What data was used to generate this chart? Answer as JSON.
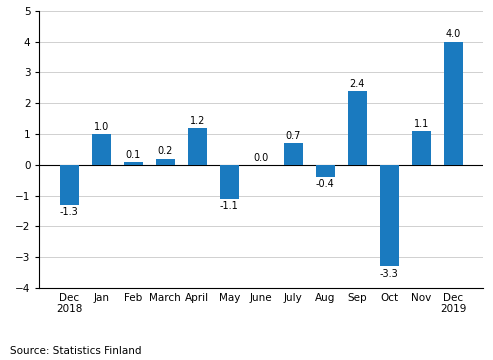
{
  "categories": [
    "Dec\n2018",
    "Jan",
    "Feb",
    "March",
    "April",
    "May",
    "June",
    "July",
    "Aug",
    "Sep",
    "Oct",
    "Nov",
    "Dec\n2019"
  ],
  "values": [
    -1.3,
    1.0,
    0.1,
    0.2,
    1.2,
    -1.1,
    0.0,
    0.7,
    -0.4,
    2.4,
    -3.3,
    1.1,
    4.0
  ],
  "bar_color": "#1a7abf",
  "ylim": [
    -4,
    5
  ],
  "yticks": [
    -4,
    -3,
    -2,
    -1,
    0,
    1,
    2,
    3,
    4,
    5
  ],
  "source_text": "Source: Statistics Finland",
  "label_fontsize": 7.0,
  "axis_fontsize": 7.5,
  "source_fontsize": 7.5,
  "bar_width": 0.6,
  "grid_color": "#d0d0d0",
  "background_color": "#ffffff"
}
